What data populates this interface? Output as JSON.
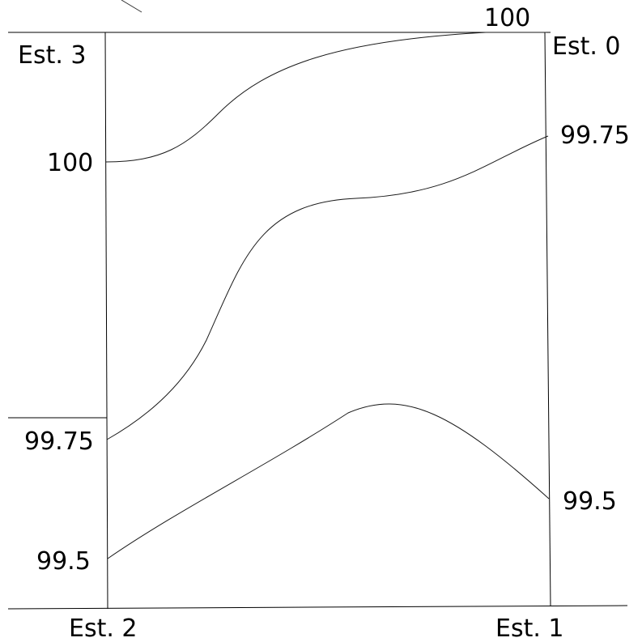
{
  "corners": {
    "top_left": "Est. 3",
    "top_right": "Est. 0",
    "bottom_left": "Est. 2",
    "bottom_right": "Est. 1"
  },
  "ticks": {
    "left": [
      "100",
      "99.75",
      "99.5"
    ],
    "right": [
      "99.75",
      "99.5"
    ],
    "top": [
      "100"
    ]
  }
}
